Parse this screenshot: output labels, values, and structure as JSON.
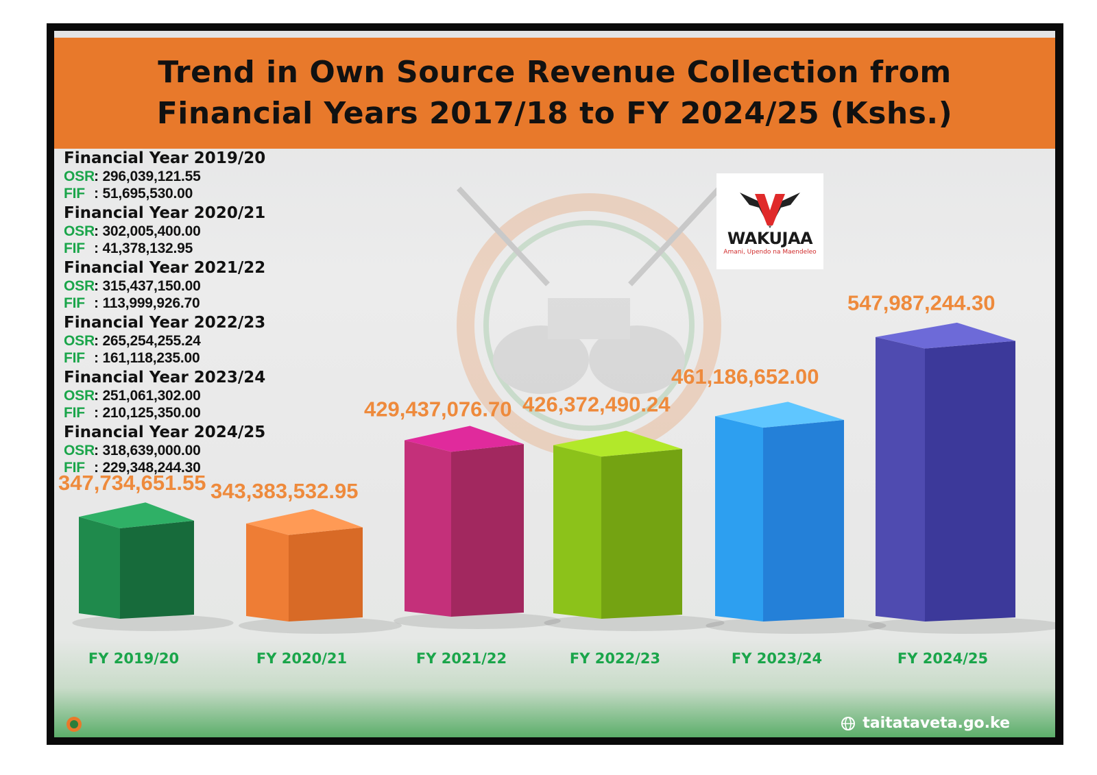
{
  "title": {
    "line1": "Trend in  Own Source Revenue Collection from",
    "line2": "Financial Years 2017/18 to FY 2024/25 (Kshs.)"
  },
  "breakdown": [
    {
      "title": "Financial Year 2019/20",
      "osr_label": "OSR",
      "osr": "296,039,121.55",
      "fif_label": "FIF",
      "fif": "51,695,530.00"
    },
    {
      "title": "Financial Year 2020/21",
      "osr_label": "OSR",
      "osr": "302,005,400.00",
      "fif_label": "FIF",
      "fif": "41,378,132.95"
    },
    {
      "title": "Financial Year 2021/22",
      "osr_label": "OSR",
      "osr": "315,437,150.00",
      "fif_label": "FIF",
      "fif": "113,999,926.70"
    },
    {
      "title": "Financial Year 2022/23",
      "osr_label": "OSR",
      "osr": "265,254,255.24",
      "fif_label": "FIF",
      "fif": "161,118,235.00"
    },
    {
      "title": "Financial Year 2023/24",
      "osr_label": "OSR",
      "osr": "251,061,302.00",
      "fif_label": "FIF",
      "fif": "210,125,350.00"
    },
    {
      "title": "Financial Year 2024/25",
      "osr_label": "OSR",
      "osr": "318,639,000.00",
      "fif_label": "FIF",
      "fif": "229,348,244.30"
    }
  ],
  "logo": {
    "name": "WAKUJAA",
    "tagline": "Amani, Upendo na Maendeleo"
  },
  "website": "taitataveta.go.ke",
  "colors": {
    "title_band": "#e8792b",
    "value_labels": "#ee8a3c",
    "category_labels": "#1aa54a"
  },
  "chart_data": {
    "type": "bar",
    "categories": [
      "FY 2019/20",
      "FY 2020/21",
      "FY 2021/22",
      "FY 2022/23",
      "FY 2023/24",
      "FY 2024/25"
    ],
    "values": [
      347734651.55,
      343383532.95,
      429437076.7,
      426372490.24,
      461186652.0,
      547987244.3
    ],
    "value_labels": [
      "347,734,651.55",
      "343,383,532.95",
      "429,437,076.70",
      "426,372,490.24",
      "461,186,652.00",
      "547,987,244.30"
    ],
    "bar_colors": [
      "#1f8a4c",
      "#ee7d35",
      "#c4307a",
      "#8cc21a",
      "#2d9ff0",
      "#4f4bb0"
    ],
    "bar_colors_light": [
      "#2fb066",
      "#ff9a55",
      "#e02a9c",
      "#b2e82a",
      "#5fc6ff",
      "#6d6ad8"
    ],
    "bar_colors_dark": [
      "#176b3b",
      "#d86a26",
      "#a2285f",
      "#74a312",
      "#2480d8",
      "#3c399a"
    ],
    "grid": false,
    "legend": "none"
  }
}
